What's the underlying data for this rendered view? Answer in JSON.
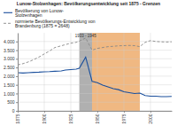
{
  "chart_data": {
    "type": "line",
    "title": "Lunow-Stolzenhagen: Bevölkerungsentwicklung seit 1875 - Grenzen",
    "x": [
      1875,
      1880,
      1885,
      1890,
      1895,
      1900,
      1905,
      1910,
      1916,
      1920,
      1925,
      1930,
      1933,
      1939,
      1945,
      1950,
      1955,
      1960,
      1965,
      1970,
      1975,
      1980,
      1985,
      1990,
      1995,
      2000,
      2005,
      2010,
      2015,
      2020
    ],
    "xlim": [
      1875,
      2020
    ],
    "xticks": [
      1875,
      1900,
      1925,
      1950,
      1975,
      2000
    ],
    "ylim": [
      0,
      4500
    ],
    "yticks": [
      0,
      500,
      {
        "value": 1000,
        "label": "1.000"
      },
      {
        "value": 1500,
        "label": "1.500"
      },
      {
        "value": 2000,
        "label": "2.000"
      },
      {
        "value": 2500,
        "label": "2.500"
      },
      {
        "value": 3000,
        "label": "3.000"
      },
      {
        "value": 3500,
        "label": "3.500"
      },
      {
        "value": 4000,
        "label": "4.000"
      }
    ],
    "grid": true,
    "legend": "top",
    "series": [
      {
        "name": "Bevölkerung von Lunow-\nStolzenhagen",
        "color": "#1a4f9c",
        "line_style": "solid",
        "values": [
          2200,
          2180,
          2200,
          2220,
          2230,
          2250,
          2260,
          2280,
          2300,
          2350,
          2380,
          2400,
          2450,
          3100,
          1700,
          1620,
          1480,
          1380,
          1280,
          1220,
          1100,
          1050,
          1000,
          1020,
          880,
          840,
          840,
          820,
          820,
          830
        ]
      },
      {
        "name": "normierte Bevölkerungs-Entwicklung von\nBrandenburg (1875 = 2648)",
        "color": "#888888",
        "line_style": "dashed",
        "values": [
          2648,
          2720,
          2820,
          2950,
          3100,
          3280,
          3450,
          3650,
          3750,
          3820,
          3900,
          3950,
          4020,
          4200,
          3500,
          3600,
          3650,
          3700,
          3720,
          3750,
          3760,
          3770,
          3760,
          3700,
          3950,
          4050,
          4000,
          3980,
          3970,
          3980
        ]
      }
    ],
    "spans": [
      {
        "x": [
          1933,
          1945
        ],
        "color": "#b0b0b0",
        "label": "1933 - 1945"
      },
      {
        "x": [
          1945,
          1990
        ],
        "color": "#f0b882"
      }
    ]
  }
}
